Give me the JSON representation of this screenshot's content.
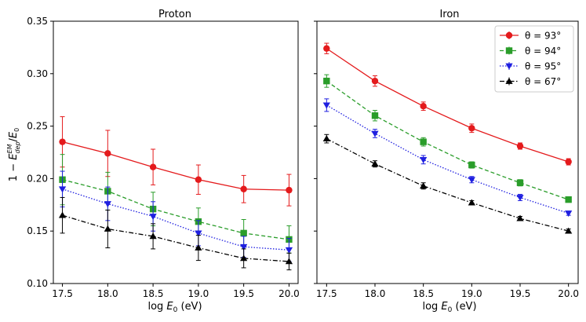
{
  "chart_data": [
    {
      "type": "line",
      "title": "Proton",
      "xlabel": "log E₀ (eV)",
      "ylabel": "1 − E_dep^EM / E₀",
      "xlim": [
        17.4,
        20.1
      ],
      "ylim": [
        0.1,
        0.35
      ],
      "x": [
        17.5,
        18.0,
        18.5,
        19.0,
        19.5,
        20.0
      ],
      "xticks": [
        "17.5",
        "18.0",
        "18.5",
        "19.0",
        "19.5",
        "20.0"
      ],
      "yticks": [
        "0.10",
        "0.15",
        "0.20",
        "0.25",
        "0.30",
        "0.35"
      ],
      "series": [
        {
          "name": "θ = 93°",
          "color": "#e41a1c",
          "marker": "circle",
          "dash": "solid",
          "values": [
            0.235,
            0.224,
            0.211,
            0.199,
            0.19,
            0.189
          ],
          "errors": [
            0.024,
            0.022,
            0.017,
            0.014,
            0.013,
            0.015
          ]
        },
        {
          "name": "θ = 94°",
          "color": "#2a9d2a",
          "marker": "square",
          "dash": "dashed",
          "values": [
            0.199,
            0.188,
            0.171,
            0.159,
            0.148,
            0.142
          ],
          "errors": [
            0.024,
            0.018,
            0.016,
            0.013,
            0.013,
            0.013
          ]
        },
        {
          "name": "θ = 95°",
          "color": "#1f1fe0",
          "marker": "triangle-down",
          "dash": "dotted",
          "values": [
            0.19,
            0.176,
            0.164,
            0.148,
            0.135,
            0.132
          ],
          "errors": [
            0.017,
            0.016,
            0.014,
            0.012,
            0.01,
            0.011
          ]
        },
        {
          "name": "θ = 67°",
          "color": "#000000",
          "marker": "triangle-up",
          "dash": "dashdot",
          "values": [
            0.165,
            0.152,
            0.145,
            0.134,
            0.124,
            0.121
          ],
          "errors": [
            0.017,
            0.018,
            0.012,
            0.012,
            0.009,
            0.008
          ]
        }
      ]
    },
    {
      "type": "line",
      "title": "Iron",
      "xlabel": "log E₀ (eV)",
      "ylabel": "",
      "xlim": [
        17.4,
        20.1
      ],
      "ylim": [
        0.1,
        0.35
      ],
      "x": [
        17.5,
        18.0,
        18.5,
        19.0,
        19.5,
        20.0
      ],
      "xticks": [
        "17.5",
        "18.0",
        "18.5",
        "19.0",
        "19.5",
        "20.0"
      ],
      "legend": "top-right",
      "series": [
        {
          "name": "θ = 93°",
          "color": "#e41a1c",
          "marker": "circle",
          "dash": "solid",
          "values": [
            0.324,
            0.293,
            0.269,
            0.248,
            0.231,
            0.216
          ],
          "errors": [
            0.005,
            0.005,
            0.004,
            0.004,
            0.003,
            0.003
          ]
        },
        {
          "name": "θ = 94°",
          "color": "#2a9d2a",
          "marker": "square",
          "dash": "dashed",
          "values": [
            0.293,
            0.26,
            0.235,
            0.213,
            0.196,
            0.18
          ],
          "errors": [
            0.006,
            0.005,
            0.004,
            0.003,
            0.003,
            0.002
          ]
        },
        {
          "name": "θ = 95°",
          "color": "#1f1fe0",
          "marker": "triangle-down",
          "dash": "dotted",
          "values": [
            0.27,
            0.243,
            0.218,
            0.199,
            0.182,
            0.167
          ],
          "errors": [
            0.006,
            0.004,
            0.004,
            0.003,
            0.003,
            0.002
          ]
        },
        {
          "name": "θ = 67°",
          "color": "#000000",
          "marker": "triangle-up",
          "dash": "dashdot",
          "values": [
            0.238,
            0.214,
            0.193,
            0.177,
            0.162,
            0.15
          ],
          "errors": [
            0.004,
            0.003,
            0.003,
            0.002,
            0.002,
            0.002
          ]
        }
      ]
    }
  ]
}
